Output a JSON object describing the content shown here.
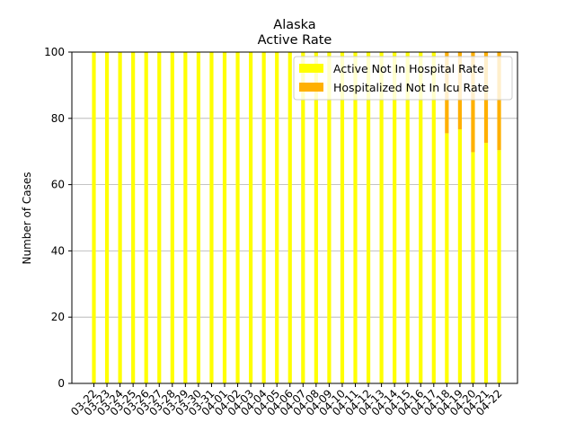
{
  "chart_data": {
    "type": "bar",
    "stacked": true,
    "title": "Alaska",
    "subtitle": "Active Rate",
    "xlabel": "",
    "ylabel": "Number of Cases",
    "ylim": [
      0,
      100
    ],
    "yticks": [
      0,
      20,
      40,
      60,
      80,
      100
    ],
    "grid": "y",
    "legend_position": "top-right",
    "categories": [
      "03-22",
      "03-23",
      "03-24",
      "03-25",
      "03-26",
      "03-27",
      "03-28",
      "03-29",
      "03-30",
      "03-31",
      "04-01",
      "04-02",
      "04-03",
      "04-04",
      "04-05",
      "04-06",
      "04-07",
      "04-08",
      "04-09",
      "04-10",
      "04-11",
      "04-12",
      "04-13",
      "04-14",
      "04-15",
      "04-16",
      "04-17",
      "04-18",
      "04-19",
      "04-20",
      "04-21",
      "04-22"
    ],
    "series": [
      {
        "name": "Active Not In Hospital Rate",
        "color": "#ffff00",
        "values": [
          100,
          100,
          100,
          100,
          100,
          100,
          100,
          100,
          100,
          100,
          100,
          100,
          100,
          100,
          100,
          100,
          100,
          100,
          100,
          100,
          100,
          100,
          100,
          100,
          100,
          100,
          100,
          75.5,
          76.7,
          69.8,
          72.6,
          70.4
        ]
      },
      {
        "name": "Hospitalized Not In Icu Rate",
        "color": "#ffb000",
        "values": [
          0,
          0,
          0,
          0,
          0,
          0,
          0,
          0,
          0,
          0,
          0,
          0,
          0,
          0,
          0,
          0,
          0,
          0,
          0,
          0,
          0,
          0,
          0,
          0,
          0,
          0,
          0,
          24.5,
          23.3,
          30.2,
          27.4,
          29.6
        ]
      }
    ]
  }
}
